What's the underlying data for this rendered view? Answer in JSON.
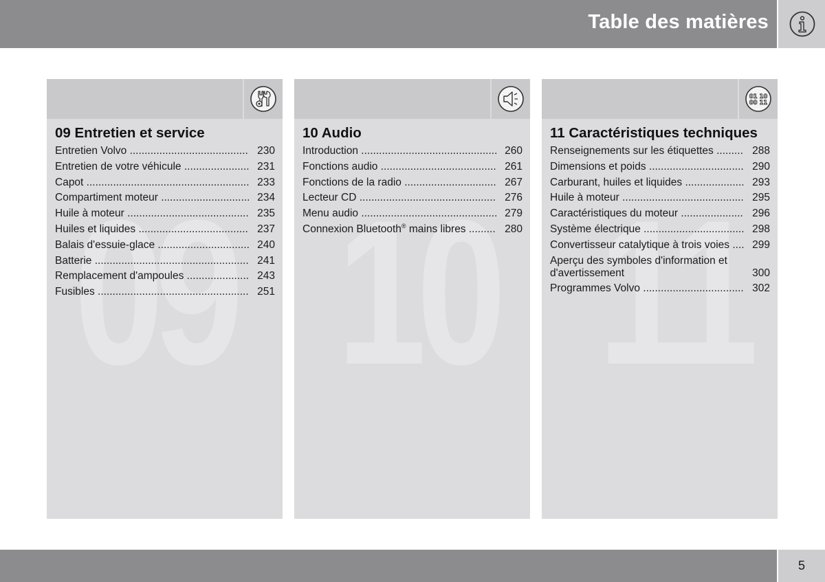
{
  "header": {
    "title": "Table des matières",
    "icon": "info-icon"
  },
  "footer": {
    "page_number": "5"
  },
  "sections": [
    {
      "watermark": "09",
      "icon": "wrench-gear-icon",
      "title": "09 Entretien et service",
      "items": [
        {
          "label": "Entretien Volvo",
          "page": "230"
        },
        {
          "label": "Entretien de votre véhicule",
          "page": "231"
        },
        {
          "label": "Capot",
          "page": "233"
        },
        {
          "label": "Compartiment moteur",
          "page": "234"
        },
        {
          "label": "Huile à moteur",
          "page": "235"
        },
        {
          "label": "Huiles et liquides",
          "page": "237"
        },
        {
          "label": "Balais d'essuie-glace",
          "page": "240"
        },
        {
          "label": "Batterie",
          "page": "241"
        },
        {
          "label": "Remplacement d'ampoules",
          "page": "243"
        },
        {
          "label": "Fusibles",
          "page": "251"
        }
      ]
    },
    {
      "watermark": "10",
      "icon": "speaker-icon",
      "title": "10 Audio",
      "items": [
        {
          "label": "Introduction",
          "page": "260"
        },
        {
          "label": "Fonctions audio",
          "page": "261"
        },
        {
          "label": "Fonctions de la radio",
          "page": "267"
        },
        {
          "label": "Lecteur CD",
          "page": "276"
        },
        {
          "label": "Menu audio",
          "page": "279"
        },
        {
          "label": "Connexion Bluetooth",
          "superscript": "®",
          "label_suffix": " mains libres",
          "page": "280"
        }
      ]
    },
    {
      "watermark": "11",
      "icon": "specifications-icon",
      "icon_text": [
        "01 10",
        "00 11"
      ],
      "title": "11 Caractéristiques techniques",
      "items": [
        {
          "label": "Renseignements sur les étiquettes",
          "page": "288"
        },
        {
          "label": "Dimensions et poids",
          "page": "290"
        },
        {
          "label": "Carburant, huiles et liquides",
          "page": "293"
        },
        {
          "label": "Huile à moteur",
          "page": "295"
        },
        {
          "label": "Caractéristiques du moteur",
          "page": "296"
        },
        {
          "label": "Système électrique",
          "page": "298"
        },
        {
          "label": "Convertisseur catalytique à trois voies",
          "page": "299"
        },
        {
          "label": "Aperçu des symboles d'information et d'avertissement",
          "page": "300"
        },
        {
          "label": "Programmes Volvo",
          "page": "302"
        }
      ]
    }
  ]
}
